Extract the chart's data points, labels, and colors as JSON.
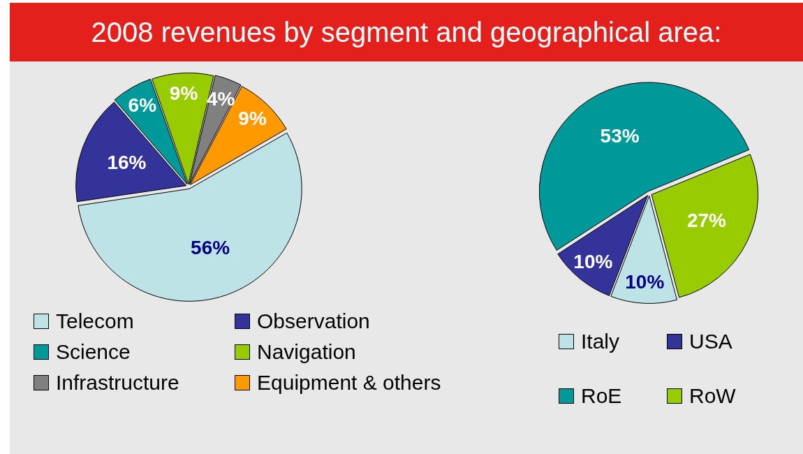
{
  "chart_data": [
    {
      "type": "pie",
      "title": "2008 revenues by segment and geographical area:",
      "categories": [
        "Telecom",
        "Observation",
        "Science",
        "Navigation",
        "Infrastructure",
        "Equipment & others"
      ],
      "values": [
        56,
        16,
        6,
        9,
        4,
        9
      ],
      "colors": [
        "#bde3e6",
        "#333399",
        "#009999",
        "#99cc00",
        "#808080",
        "#ff9900"
      ],
      "value_labels": [
        "56%",
        "16%",
        "6%",
        "9%",
        "4%",
        "9%"
      ],
      "legend": "bottom"
    },
    {
      "type": "pie",
      "categories": [
        "Italy",
        "USA",
        "RoE",
        "RoW"
      ],
      "values": [
        10,
        10,
        53,
        27
      ],
      "colors": [
        "#bde3e6",
        "#333399",
        "#009999",
        "#99cc00"
      ],
      "value_labels": [
        "10%",
        "10%",
        "53%",
        "27%"
      ],
      "legend": "bottom"
    }
  ]
}
